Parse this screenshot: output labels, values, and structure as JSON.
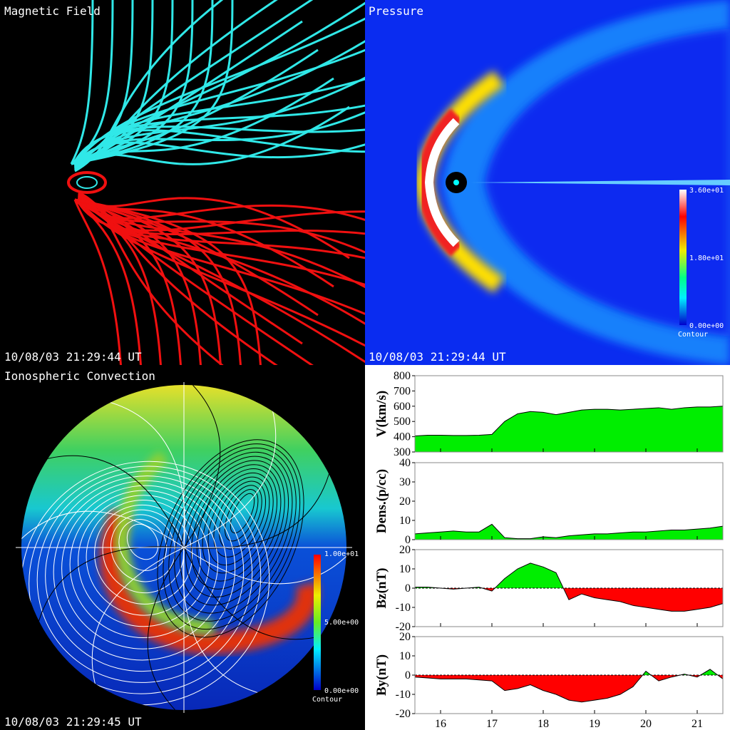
{
  "panels": [
    {
      "title": "Magnetic Field",
      "timestamp": "10/08/03 21:29:44 UT"
    },
    {
      "title": "Pressure",
      "timestamp": "10/08/03 21:29:44 UT",
      "colorbar_labels": [
        "3.60e+01",
        "1.80e+01",
        "0.00e+00"
      ],
      "colorbar_title": "Contour"
    },
    {
      "title": "Ionospheric Convection",
      "timestamp": "10/08/03 21:29:45 UT",
      "colorbar_labels": [
        "1.00e+01",
        "5.00e+00",
        "0.00e+00"
      ],
      "colorbar_title": "Contour"
    }
  ],
  "chart_data": [
    {
      "type": "area",
      "ylabel": "V(km/s)",
      "pos_color": "#00ee00",
      "neg_color": "#ff0000",
      "zero_line": false,
      "x": [
        15.5,
        15.75,
        16,
        16.25,
        16.5,
        16.75,
        17,
        17.25,
        17.5,
        17.75,
        18,
        18.25,
        18.5,
        18.75,
        19,
        19.25,
        19.5,
        19.75,
        20,
        20.25,
        20.5,
        20.75,
        21,
        21.25,
        21.5
      ],
      "values": [
        405,
        410,
        410,
        408,
        408,
        410,
        415,
        500,
        550,
        565,
        560,
        545,
        560,
        575,
        580,
        580,
        575,
        580,
        585,
        590,
        580,
        590,
        595,
        595,
        600
      ],
      "xlim": [
        15.5,
        21.5
      ],
      "xticks": [
        16,
        17,
        18,
        19,
        20,
        21
      ],
      "ylim": [
        300,
        800
      ],
      "yticks": [
        300,
        400,
        500,
        600,
        700,
        800
      ]
    },
    {
      "type": "area",
      "ylabel": "Dens.(p/cc)",
      "pos_color": "#00ee00",
      "neg_color": "#ff0000",
      "zero_line": false,
      "x": [
        15.5,
        15.75,
        16,
        16.25,
        16.5,
        16.75,
        17,
        17.25,
        17.5,
        17.75,
        18,
        18.25,
        18.5,
        18.75,
        19,
        19.25,
        19.5,
        19.75,
        20,
        20.25,
        20.5,
        20.75,
        21,
        21.25,
        21.5
      ],
      "values": [
        3,
        3.5,
        4,
        4.5,
        4,
        4,
        8,
        1,
        0.5,
        0.5,
        1.5,
        1,
        2,
        2.5,
        3,
        3,
        3.5,
        4,
        4,
        4.5,
        5,
        5,
        5.5,
        6,
        7
      ],
      "xlim": [
        15.5,
        21.5
      ],
      "xticks": [
        16,
        17,
        18,
        19,
        20,
        21
      ],
      "ylim": [
        0,
        40
      ],
      "yticks": [
        0,
        10,
        20,
        30,
        40
      ]
    },
    {
      "type": "area",
      "ylabel": "Bz(nT)",
      "pos_color": "#00ee00",
      "neg_color": "#ff0000",
      "zero_line": true,
      "x": [
        15.5,
        15.75,
        16,
        16.25,
        16.5,
        16.75,
        17,
        17.25,
        17.5,
        17.75,
        18,
        18.25,
        18.5,
        18.75,
        19,
        19.25,
        19.5,
        19.75,
        20,
        20.25,
        20.5,
        20.75,
        21,
        21.25,
        21.5
      ],
      "values": [
        0.5,
        0.5,
        0,
        -0.5,
        0,
        0.5,
        -1.5,
        5,
        10,
        13,
        11,
        8,
        -6,
        -3,
        -5,
        -6,
        -7,
        -9,
        -10,
        -11,
        -12,
        -12,
        -11,
        -10,
        -8
      ],
      "xlim": [
        15.5,
        21.5
      ],
      "xticks": [
        16,
        17,
        18,
        19,
        20,
        21
      ],
      "ylim": [
        -20,
        20
      ],
      "yticks": [
        -20,
        -10,
        0,
        10,
        20
      ]
    },
    {
      "type": "area",
      "ylabel": "By(nT)",
      "pos_color": "#00ee00",
      "neg_color": "#ff0000",
      "zero_line": true,
      "show_xtick_labels": true,
      "x": [
        15.5,
        15.75,
        16,
        16.25,
        16.5,
        16.75,
        17,
        17.25,
        17.5,
        17.75,
        18,
        18.25,
        18.5,
        18.75,
        19,
        19.25,
        19.5,
        19.75,
        20,
        20.25,
        20.5,
        20.75,
        21,
        21.25,
        21.5
      ],
      "values": [
        -1,
        -1.5,
        -2,
        -2,
        -2,
        -2.5,
        -3,
        -8,
        -7,
        -5,
        -8,
        -10,
        -13,
        -14,
        -13,
        -12,
        -10,
        -6,
        2,
        -3,
        -1,
        0.5,
        -1,
        3,
        -2
      ],
      "xlim": [
        15.5,
        21.5
      ],
      "xticks": [
        16,
        17,
        18,
        19,
        20,
        21
      ],
      "ylim": [
        -20,
        20
      ],
      "yticks": [
        -20,
        -10,
        0,
        10,
        20
      ]
    }
  ]
}
